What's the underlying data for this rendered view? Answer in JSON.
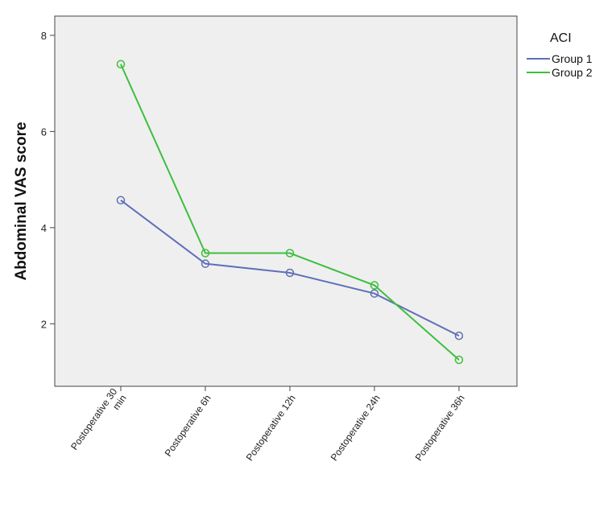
{
  "chart_data": {
    "type": "line",
    "ylabel": "Abdominal VAS score",
    "xlabel": "",
    "categories": [
      [
        "Postoperative 30",
        "min"
      ],
      [
        "Postoperative 6h"
      ],
      [
        "Postoperative 12h"
      ],
      [
        "Postoperative 24h"
      ],
      [
        "Postoperative 36h"
      ]
    ],
    "ylim": [
      0.7,
      8.4
    ],
    "yticks": [
      2,
      4,
      6,
      8
    ],
    "grid": false,
    "legend": {
      "title": "ACI",
      "placement": "right"
    },
    "series": [
      {
        "name": "Group 1",
        "color": "#5f6fb8",
        "values": [
          4.57,
          3.25,
          3.06,
          2.63,
          1.75
        ]
      },
      {
        "name": "Group 2",
        "color": "#3dbf3d",
        "values": [
          7.4,
          3.47,
          3.47,
          2.8,
          1.25
        ]
      }
    ]
  }
}
